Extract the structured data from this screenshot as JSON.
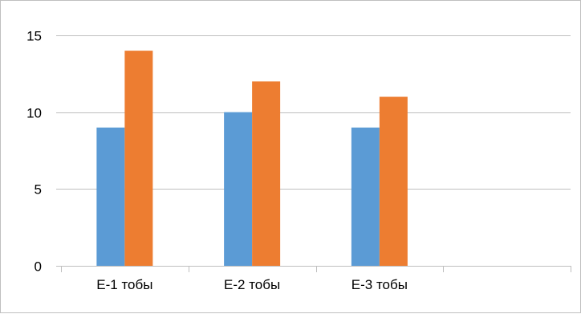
{
  "chart_data": {
    "type": "bar",
    "title": "",
    "xlabel": "",
    "ylabel": "",
    "categories": [
      "Е-1 тобы",
      "Е-2 тобы",
      "Е-3 тобы",
      ""
    ],
    "series": [
      {
        "values": [
          9,
          10,
          9,
          null
        ],
        "color": "#5B9BD5"
      },
      {
        "values": [
          14,
          12,
          11,
          null
        ],
        "color": "#ED7D31"
      }
    ],
    "ylim": [
      0,
      15
    ],
    "yticks": [
      0,
      5,
      10,
      15
    ],
    "ytick_labels": [
      "0",
      "5",
      "10",
      "15"
    ],
    "grid": true,
    "legend": "none",
    "gridline_color": "#bfbfbf"
  }
}
